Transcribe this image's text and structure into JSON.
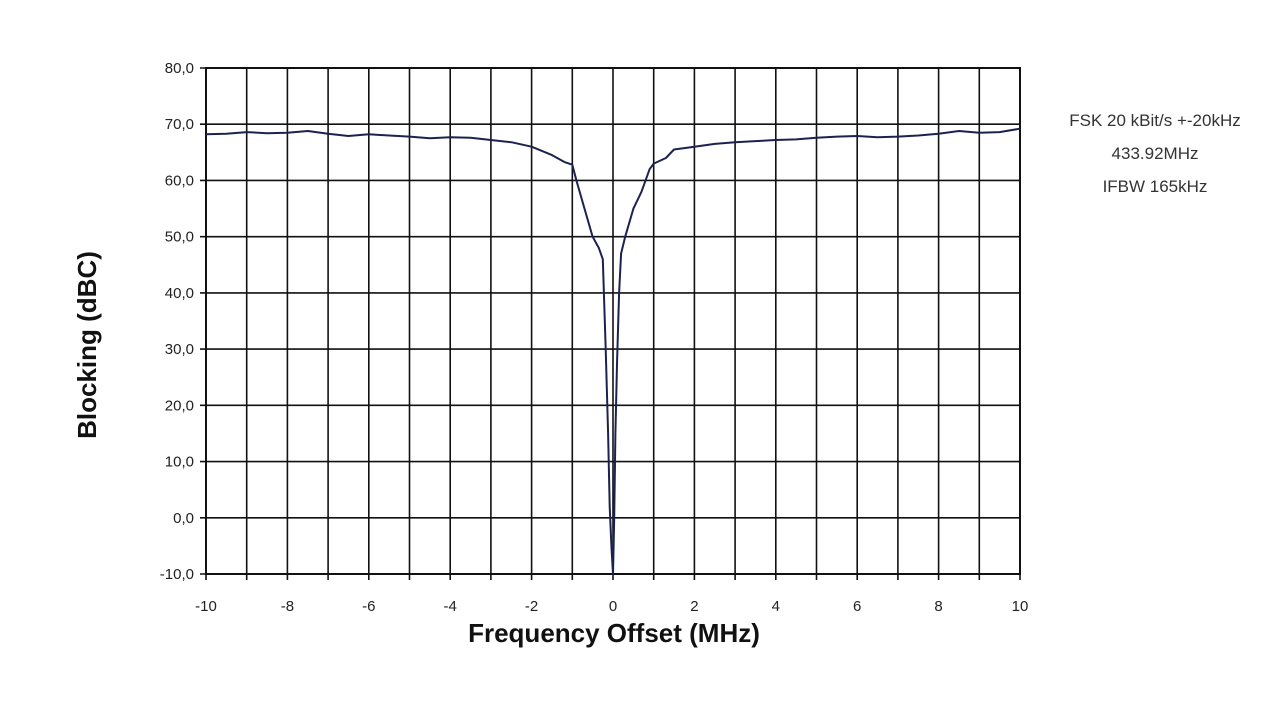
{
  "chart_data": {
    "type": "line",
    "title": "",
    "xlabel": "Frequency Offset (MHz)",
    "ylabel": "Blocking (dBC)",
    "xlim": [
      -10,
      10
    ],
    "ylim": [
      -10,
      80
    ],
    "grid": true,
    "legend": "none",
    "x_tick_values": [
      -10,
      -9,
      -8,
      -7,
      -6,
      -5,
      -4,
      -3,
      -2,
      -1,
      0,
      1,
      2,
      3,
      4,
      5,
      6,
      7,
      8,
      9,
      10
    ],
    "x_tick_labels": [
      {
        "value": -10,
        "label": "-10"
      },
      {
        "value": -8,
        "label": "-8"
      },
      {
        "value": -6,
        "label": "-6"
      },
      {
        "value": -4,
        "label": "-4"
      },
      {
        "value": -2,
        "label": "-2"
      },
      {
        "value": 0,
        "label": "0"
      },
      {
        "value": 2,
        "label": "2"
      },
      {
        "value": 4,
        "label": "4"
      },
      {
        "value": 6,
        "label": "6"
      },
      {
        "value": 8,
        "label": "8"
      },
      {
        "value": 10,
        "label": "10"
      }
    ],
    "y_ticks": [
      {
        "value": 80,
        "label": "80,0"
      },
      {
        "value": 70,
        "label": "70,0"
      },
      {
        "value": 60,
        "label": "60,0"
      },
      {
        "value": 50,
        "label": "50,0"
      },
      {
        "value": 40,
        "label": "40,0"
      },
      {
        "value": 30,
        "label": "30,0"
      },
      {
        "value": 20,
        "label": "20,0"
      },
      {
        "value": 10,
        "label": "10,0"
      },
      {
        "value": 0,
        "label": "0,0"
      },
      {
        "value": -10,
        "label": "-10,0"
      }
    ],
    "series": [
      {
        "color": "#1c2250",
        "x": [
          -10,
          -9.5,
          -9,
          -8.5,
          -8,
          -7.5,
          -7,
          -6.5,
          -6,
          -5.5,
          -5,
          -4.5,
          -4,
          -3.5,
          -3,
          -2.5,
          -2,
          -1.5,
          -1.2,
          -1.0,
          -0.9,
          -0.7,
          -0.5,
          -0.35,
          -0.25,
          -0.18,
          -0.12,
          -0.08,
          -0.04,
          0.0,
          0.03,
          0.06,
          0.1,
          0.15,
          0.2,
          0.3,
          0.5,
          0.7,
          0.9,
          1.0,
          1.3,
          1.5,
          2.0,
          2.5,
          3.0,
          3.5,
          4.0,
          4.5,
          5.0,
          5.5,
          6.0,
          6.5,
          7.0,
          7.5,
          8.0,
          8.5,
          9.0,
          9.5,
          10.0
        ],
        "y": [
          68.2,
          68.3,
          68.6,
          68.4,
          68.5,
          68.8,
          68.3,
          67.9,
          68.2,
          68.0,
          67.8,
          67.5,
          67.7,
          67.6,
          67.2,
          66.8,
          66.0,
          64.5,
          63.3,
          62.8,
          60.0,
          55.0,
          50.0,
          48.0,
          46.0,
          30.0,
          15.0,
          2.0,
          -5.0,
          -10.0,
          0.0,
          15.0,
          28.0,
          40.0,
          47.0,
          50.0,
          55.0,
          58.0,
          62.0,
          63.0,
          64.0,
          65.5,
          66.0,
          66.5,
          66.8,
          67.0,
          67.2,
          67.3,
          67.6,
          67.8,
          67.9,
          67.7,
          67.8,
          68.0,
          68.3,
          68.8,
          68.5,
          68.6,
          69.2
        ]
      }
    ]
  },
  "annotation": {
    "line1": "FSK 20 kBit/s +-20kHz",
    "line2": "433.92MHz",
    "line3": "IFBW 165kHz"
  }
}
